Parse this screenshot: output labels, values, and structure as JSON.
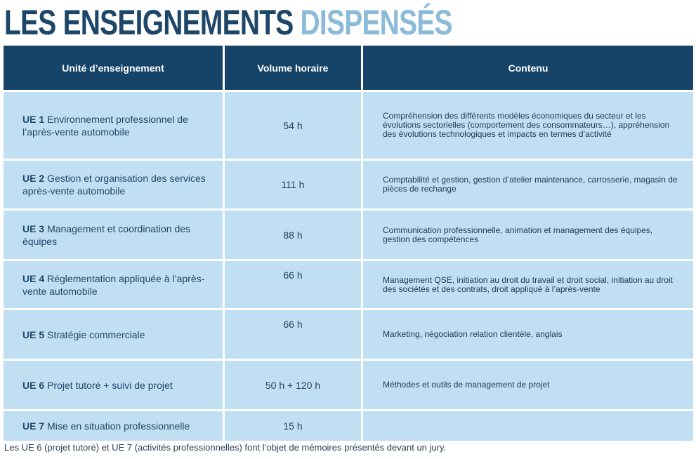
{
  "title": {
    "part1": "LES ENSEIGNEMENTS",
    "part2": "DISPENSÉS"
  },
  "colors": {
    "title_dark": "#1e4668",
    "title_light": "#8bbbd8",
    "header_bg": "#164468",
    "row_bg": "#c0dff3"
  },
  "table": {
    "headers": [
      "Unité d’enseignement",
      "Volume horaire",
      "Contenu"
    ],
    "rows": [
      {
        "code": "UE 1",
        "name": "Environnement professionnel de l’après-vente automobile",
        "volume": "54 h",
        "content": "Compréhension des différents modèles économiques du secteur et les évolutions sectorielles (comportement des consommateurs…), appréhension des évolutions technologiques et impacts en termes d’activité"
      },
      {
        "code": "UE 2",
        "name": "Gestion et organisation des services après-vente automobile",
        "volume": "111 h",
        "content": "Comptabilité et gestion, gestion d’atelier maintenance, carrosserie, magasin de pièces de rechange"
      },
      {
        "code": "UE 3",
        "name": "Management et coordination des équipes",
        "volume": "88 h",
        "content": "Communication professionnelle, animation et management des équipes, gestion des compétences"
      },
      {
        "code": "UE 4",
        "name": "Réglementation appliquée à l’après-vente automobile",
        "volume": "66 h",
        "content": "Management QSE, initiation au droit du travail et droit social, initiation au droit des sociétés et des contrats, droit appliqué à l’après-vente"
      },
      {
        "code": "UE 5",
        "name": "Stratégie commerciale",
        "volume": "66 h",
        "content": "Marketing, négociation relation clientèle, anglais"
      },
      {
        "code": "UE 6",
        "name": "Projet tutoré + suivi de projet",
        "volume": "50 h + 120 h",
        "content": "Méthodes et outils de management de projet"
      },
      {
        "code": "UE 7",
        "name": "Mise en situation professionnelle",
        "volume": "15 h",
        "content": ""
      }
    ]
  },
  "footnote": "Les UE 6 (projet tutoré) et UE 7 (activités professionnelles) font l’objet de mémoires présentés devant un jury."
}
